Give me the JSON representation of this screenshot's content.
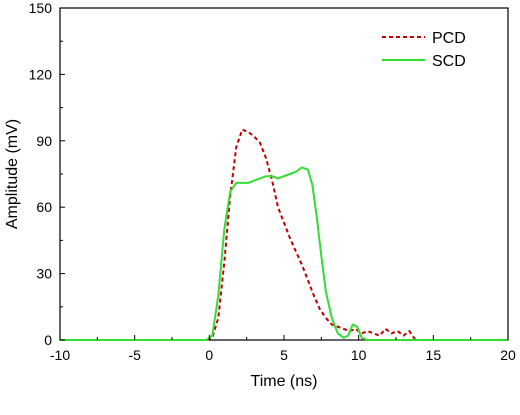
{
  "chart_data": {
    "type": "line",
    "xlabel": "Time (ns)",
    "ylabel": "Amplitude (mV)",
    "xlim": [
      -10,
      20
    ],
    "ylim": [
      0,
      150
    ],
    "x_ticks": [
      -10,
      -5,
      0,
      5,
      10,
      15,
      20
    ],
    "y_ticks": [
      0,
      30,
      60,
      90,
      120,
      150
    ],
    "grid": false,
    "legend_position": "top-right",
    "series": [
      {
        "name": "PCD",
        "color": "#c00000",
        "style": "dashed",
        "points": [
          [
            -10,
            0
          ],
          [
            -0.2,
            0
          ],
          [
            0.2,
            1
          ],
          [
            0.6,
            10
          ],
          [
            1.0,
            35
          ],
          [
            1.4,
            65
          ],
          [
            1.8,
            87
          ],
          [
            2.2,
            95
          ],
          [
            2.6,
            94
          ],
          [
            3.0,
            92
          ],
          [
            3.4,
            89
          ],
          [
            3.8,
            82
          ],
          [
            4.2,
            72
          ],
          [
            4.6,
            60
          ],
          [
            5.0,
            53
          ],
          [
            5.4,
            46
          ],
          [
            5.8,
            40
          ],
          [
            6.2,
            34
          ],
          [
            6.6,
            27
          ],
          [
            7.0,
            20
          ],
          [
            7.4,
            14
          ],
          [
            7.8,
            10
          ],
          [
            8.2,
            7
          ],
          [
            8.6,
            6
          ],
          [
            9.0,
            5
          ],
          [
            9.4,
            4
          ],
          [
            9.8,
            5
          ],
          [
            10.2,
            3
          ],
          [
            10.6,
            4
          ],
          [
            11.0,
            3
          ],
          [
            11.4,
            2
          ],
          [
            11.8,
            5
          ],
          [
            12.2,
            3
          ],
          [
            12.6,
            4
          ],
          [
            13.0,
            2
          ],
          [
            13.4,
            4
          ],
          [
            13.8,
            0
          ],
          [
            20,
            0
          ]
        ]
      },
      {
        "name": "SCD",
        "color": "#33dd33",
        "style": "solid",
        "points": [
          [
            -10,
            0
          ],
          [
            -0.2,
            0
          ],
          [
            0.2,
            2
          ],
          [
            0.6,
            20
          ],
          [
            1.0,
            50
          ],
          [
            1.4,
            67
          ],
          [
            1.8,
            71
          ],
          [
            2.2,
            71
          ],
          [
            2.6,
            71
          ],
          [
            3.0,
            72
          ],
          [
            3.4,
            73
          ],
          [
            3.8,
            74
          ],
          [
            4.2,
            74
          ],
          [
            4.6,
            73
          ],
          [
            5.0,
            74
          ],
          [
            5.4,
            75
          ],
          [
            5.8,
            76
          ],
          [
            6.2,
            78
          ],
          [
            6.6,
            77
          ],
          [
            6.9,
            70
          ],
          [
            7.2,
            55
          ],
          [
            7.5,
            38
          ],
          [
            7.8,
            22
          ],
          [
            8.2,
            10
          ],
          [
            8.6,
            3
          ],
          [
            9.0,
            1
          ],
          [
            9.3,
            2
          ],
          [
            9.6,
            7
          ],
          [
            9.9,
            6
          ],
          [
            10.2,
            1
          ],
          [
            10.6,
            0
          ],
          [
            20,
            0
          ]
        ]
      }
    ]
  }
}
